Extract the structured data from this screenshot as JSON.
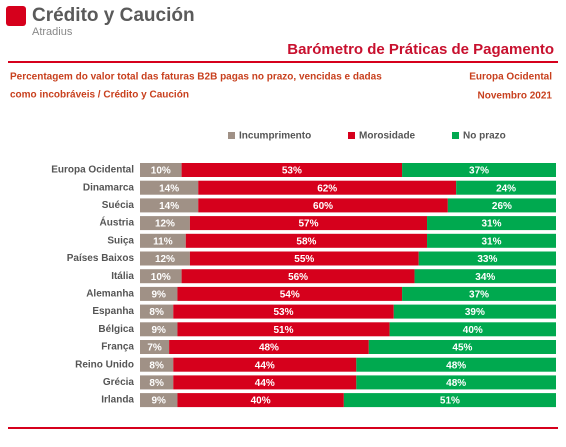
{
  "logo": {
    "brand": "Crédito y Caución",
    "sub": "Atradius"
  },
  "chart_data": {
    "type": "stacked_bar_horizontal",
    "title": "Barómetro de Práticas de Pagamento",
    "subtitle": [
      "Percentagem do valor total das faturas B2B pagas no prazo, vencidas e dadas",
      "como incobráveis / Crédito y Caución"
    ],
    "region": "Europa Ocidental",
    "date": "Novembro 2021",
    "xlim": [
      0,
      100
    ],
    "categories": [
      "Europa Ocidental",
      "Dinamarca",
      "Suécia",
      "Áustria",
      "Suiça",
      "Países Baixos",
      "Itália",
      "Alemanha",
      "Espanha",
      "Bélgica",
      "França",
      "Reino Unido",
      "Grécia",
      "Irlanda"
    ],
    "series": [
      {
        "name": "Incumprimento",
        "color": "#a09186",
        "values": [
          10,
          14,
          14,
          12,
          11,
          12,
          10,
          9,
          8,
          9,
          7,
          8,
          8,
          9
        ],
        "value_labels": [
          "10%",
          "14%",
          "14%",
          "12%",
          "11%",
          "12%",
          "10%",
          "9%",
          "8%",
          "9%",
          "7%",
          "8%",
          "8%",
          "9%"
        ]
      },
      {
        "name": "Morosidade",
        "color": "#d6001c",
        "values": [
          53,
          62,
          60,
          57,
          58,
          55,
          56,
          54,
          53,
          51,
          48,
          44,
          44,
          40
        ],
        "value_labels": [
          "53%",
          "62%",
          "60%",
          "57%",
          "58%",
          "55%",
          "56%",
          "54%",
          "53%",
          "51%",
          "48%",
          "44%",
          "44%",
          "40%"
        ]
      },
      {
        "name": "No prazo",
        "color": "#00a94f",
        "values": [
          37,
          24,
          26,
          31,
          31,
          33,
          34,
          37,
          39,
          40,
          45,
          48,
          48,
          51
        ],
        "value_labels": [
          "37%",
          "24%",
          "26%",
          "31%",
          "31%",
          "33%",
          "34%",
          "37%",
          "39%",
          "40%",
          "45%",
          "48%",
          "48%",
          "51%"
        ]
      }
    ],
    "legend": "top"
  }
}
